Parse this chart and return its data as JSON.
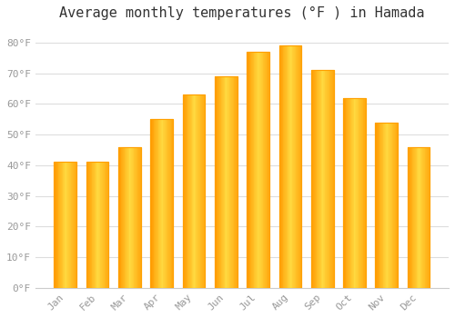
{
  "title": "Average monthly temperatures (°F ) in Hamada",
  "months": [
    "Jan",
    "Feb",
    "Mar",
    "Apr",
    "May",
    "Jun",
    "Jul",
    "Aug",
    "Sep",
    "Oct",
    "Nov",
    "Dec"
  ],
  "values": [
    41,
    41,
    46,
    55,
    63,
    69,
    77,
    79,
    71,
    62,
    54,
    46
  ],
  "bar_color_left": "#FFB300",
  "bar_color_right": "#FFA000",
  "bar_color_mid": "#FFD54F",
  "background_color": "#FFFFFF",
  "plot_bg_color": "#FFFFFF",
  "grid_color": "#DDDDDD",
  "yticks": [
    0,
    10,
    20,
    30,
    40,
    50,
    60,
    70,
    80
  ],
  "ylim": [
    0,
    85
  ],
  "title_fontsize": 11,
  "tick_fontsize": 8,
  "tick_color": "#999999",
  "title_color": "#333333"
}
